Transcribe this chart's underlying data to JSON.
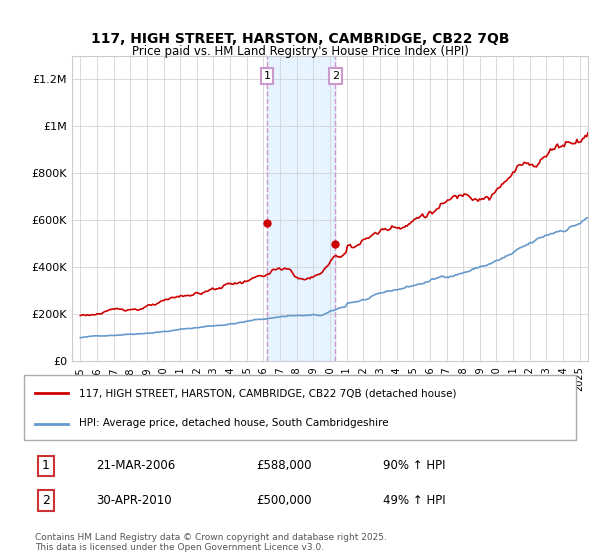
{
  "title": "117, HIGH STREET, HARSTON, CAMBRIDGE, CB22 7QB",
  "subtitle": "Price paid vs. HM Land Registry's House Price Index (HPI)",
  "legend_line1": "117, HIGH STREET, HARSTON, CAMBRIDGE, CB22 7QB (detached house)",
  "legend_line2": "HPI: Average price, detached house, South Cambridgeshire",
  "annotation_footer": "Contains HM Land Registry data © Crown copyright and database right 2025.\nThis data is licensed under the Open Government Licence v3.0.",
  "sale1_label": "1",
  "sale1_date": "21-MAR-2006",
  "sale1_price": "£588,000",
  "sale1_hpi": "90% ↑ HPI",
  "sale2_label": "2",
  "sale2_date": "30-APR-2010",
  "sale2_price": "£500,000",
  "sale2_hpi": "49% ↑ HPI",
  "sale1_x": 2006.22,
  "sale1_y": 588000,
  "sale2_x": 2010.33,
  "sale2_y": 500000,
  "vline1_x": 2006.22,
  "vline2_x": 2010.33,
  "ylim": [
    0,
    1300000
  ],
  "xlim_left": 1994.5,
  "xlim_right": 2025.5,
  "red_color": "#cc0000",
  "blue_color": "#6699cc",
  "vline_color": "#cc99cc",
  "bg_fill_color": "#ddeeff",
  "yticks": [
    0,
    200000,
    400000,
    600000,
    800000,
    1000000,
    1200000
  ],
  "ytick_labels": [
    "£0",
    "£200K",
    "£400K",
    "£600K",
    "£800K",
    "£1M",
    "£1.2M"
  ],
  "xticks": [
    1995,
    1996,
    1997,
    1998,
    1999,
    2000,
    2001,
    2002,
    2003,
    2004,
    2005,
    2006,
    2007,
    2008,
    2009,
    2010,
    2011,
    2012,
    2013,
    2014,
    2015,
    2016,
    2017,
    2018,
    2019,
    2020,
    2021,
    2022,
    2023,
    2024,
    2025
  ]
}
